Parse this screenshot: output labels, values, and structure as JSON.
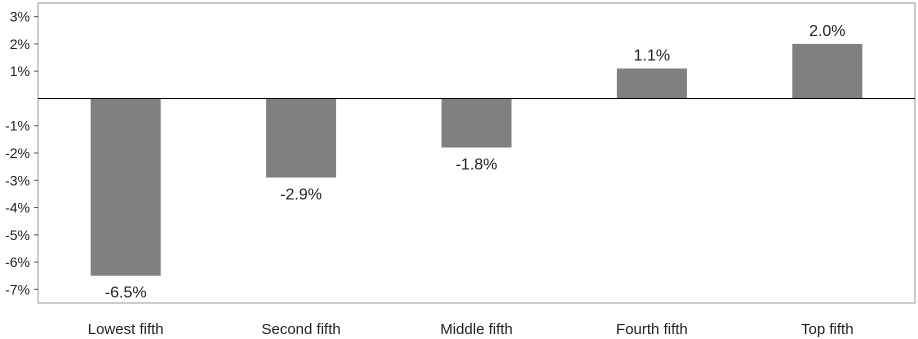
{
  "chart_data": {
    "type": "bar",
    "categories": [
      "Lowest fifth",
      "Second fifth",
      "Middle fifth",
      "Fourth fifth",
      "Top fifth"
    ],
    "values": [
      -6.5,
      -2.9,
      -1.8,
      1.1,
      2.0
    ],
    "data_labels": [
      "-6.5%",
      "-2.9%",
      "-1.8%",
      "1.1%",
      "2.0%"
    ],
    "ylim": [
      -7.5,
      3.5
    ],
    "yticks": [
      3,
      2,
      1,
      -1,
      -2,
      -3,
      -4,
      -5,
      -6,
      -7
    ],
    "ytick_labels": [
      "3%",
      "2%",
      "1%",
      "-1%",
      "-2%",
      "-3%",
      "-4%",
      "-5%",
      "-6%",
      "-7%"
    ],
    "bar_color": "#808080",
    "grid": false,
    "legend": "none"
  }
}
